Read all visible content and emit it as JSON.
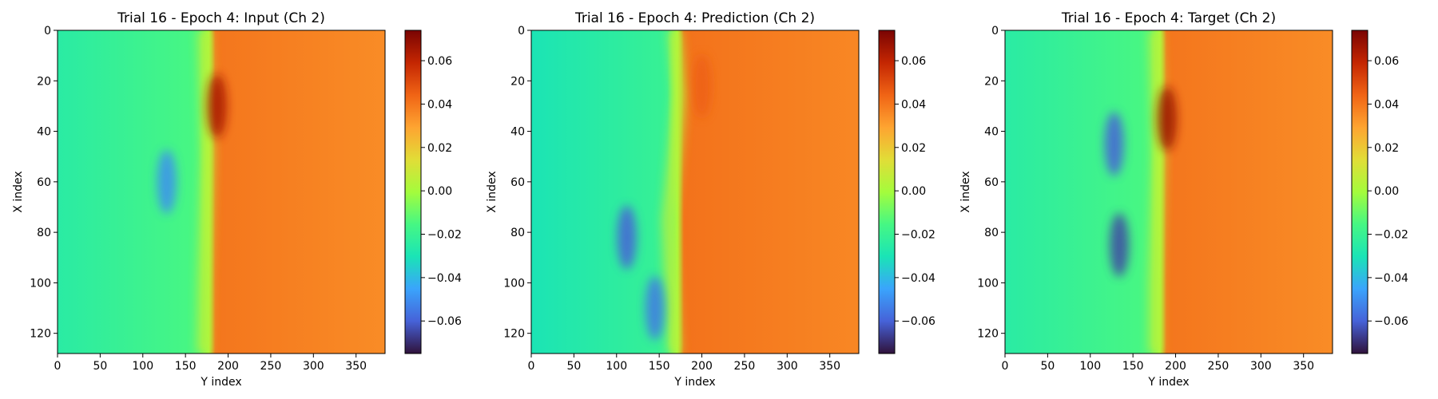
{
  "chart_data": [
    {
      "type": "heatmap",
      "title": "Trial 16 - Epoch 4: Input (Ch 2)",
      "xlabel": "Y index",
      "ylabel": "X index",
      "xlim": [
        0,
        384
      ],
      "ylim": [
        128,
        0
      ],
      "xticks": [
        0,
        50,
        100,
        150,
        200,
        250,
        300,
        350
      ],
      "yticks": [
        0,
        20,
        40,
        60,
        80,
        100,
        120
      ],
      "colormap": "turbo",
      "colorbar": {
        "range": [
          -0.075,
          0.074
        ],
        "ticks": [
          "0.06",
          "0.04",
          "0.02",
          "0.00",
          "−0.02",
          "−0.04",
          "−0.06"
        ]
      },
      "field": {
        "front_y": [
          176,
          178,
          180,
          178,
          176,
          175
        ],
        "front_x": [
          0,
          25,
          50,
          75,
          100,
          128
        ],
        "left_value": -0.025,
        "right_value": 0.035,
        "features": [
          {
            "x": 60,
            "y": 128,
            "value": -0.05
          },
          {
            "x": 30,
            "y": 187,
            "value": 0.065
          }
        ]
      }
    },
    {
      "type": "heatmap",
      "title": "Trial 16 - Epoch 4: Prediction (Ch 2)",
      "xlabel": "Y index",
      "ylabel": "X index",
      "xlim": [
        0,
        384
      ],
      "ylim": [
        128,
        0
      ],
      "xticks": [
        0,
        50,
        100,
        150,
        200,
        250,
        300,
        350
      ],
      "yticks": [
        0,
        20,
        40,
        60,
        80,
        100,
        120
      ],
      "colormap": "turbo",
      "colorbar": {
        "range": [
          -0.075,
          0.074
        ],
        "ticks": [
          "0.06",
          "0.04",
          "0.02",
          "0.00",
          "−0.02",
          "−0.04",
          "−0.06"
        ]
      },
      "field": {
        "front_y": [
          172,
          178,
          172,
          165,
          168,
          172
        ],
        "front_x": [
          0,
          25,
          50,
          75,
          100,
          128
        ],
        "left_value": -0.03,
        "right_value": 0.036,
        "features": [
          {
            "x": 82,
            "y": 112,
            "value": -0.06
          },
          {
            "x": 110,
            "y": 145,
            "value": -0.055
          },
          {
            "x": 22,
            "y": 200,
            "value": 0.045
          }
        ]
      }
    },
    {
      "type": "heatmap",
      "title": "Trial 16 - Epoch 4: Target (Ch 2)",
      "xlabel": "Y index",
      "ylabel": "X index",
      "xlim": [
        0,
        384
      ],
      "ylim": [
        128,
        0
      ],
      "xticks": [
        0,
        50,
        100,
        150,
        200,
        250,
        300,
        350
      ],
      "yticks": [
        0,
        20,
        40,
        60,
        80,
        100,
        120
      ],
      "colormap": "turbo",
      "colorbar": {
        "range": [
          -0.075,
          0.074
        ],
        "ticks": [
          "0.06",
          "0.04",
          "0.02",
          "0.00",
          "−0.02",
          "−0.04",
          "−0.06"
        ]
      },
      "field": {
        "front_y": [
          180,
          182,
          184,
          182,
          180,
          180
        ],
        "front_x": [
          0,
          25,
          50,
          75,
          100,
          128
        ],
        "left_value": -0.025,
        "right_value": 0.035,
        "features": [
          {
            "x": 45,
            "y": 128,
            "value": -0.06
          },
          {
            "x": 85,
            "y": 134,
            "value": -0.065
          },
          {
            "x": 35,
            "y": 190,
            "value": 0.068
          }
        ]
      }
    }
  ]
}
